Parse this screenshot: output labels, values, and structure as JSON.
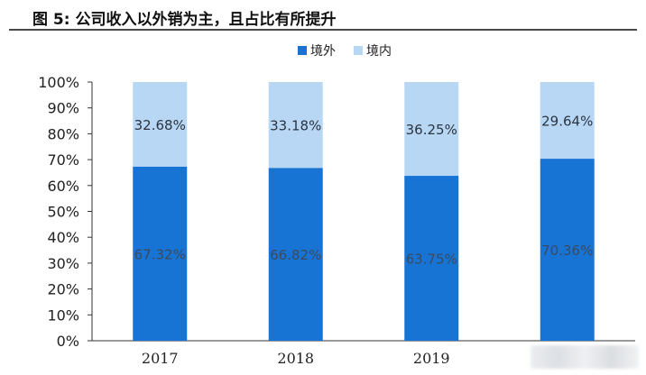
{
  "figure": {
    "title": "图 5: 公司收入以外销为主，且占比有所提升"
  },
  "chart_data": {
    "type": "bar",
    "stacked": true,
    "categories": [
      "2017",
      "2018",
      "2019",
      ""
    ],
    "series": [
      {
        "name": "境外",
        "values": [
          67.32,
          66.82,
          63.75,
          70.36
        ],
        "labels": [
          "67.32%",
          "66.82%",
          "63.75%",
          "70.36%"
        ],
        "color": "#1874d4"
      },
      {
        "name": "境内",
        "values": [
          32.68,
          33.18,
          36.25,
          29.64
        ],
        "labels": [
          "32.68%",
          "33.18%",
          "36.25%",
          "29.64%"
        ],
        "color": "#b8d7f5"
      }
    ],
    "ylim": [
      0,
      100
    ],
    "yticks": [
      "0%",
      "10%",
      "20%",
      "30%",
      "40%",
      "50%",
      "60%",
      "70%",
      "80%",
      "90%",
      "100%"
    ],
    "xlabel": "",
    "ylabel": "",
    "grid": false,
    "legend": "top-center"
  }
}
